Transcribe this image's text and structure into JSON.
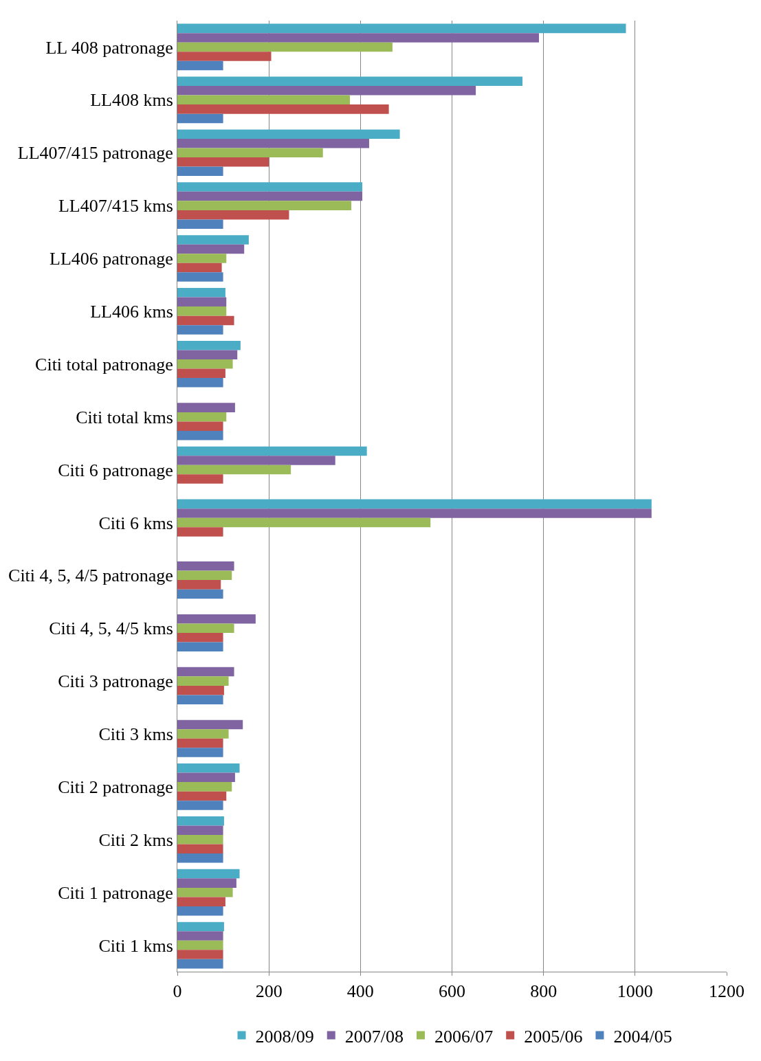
{
  "chart_data": {
    "type": "bar",
    "orientation": "horizontal",
    "categories": [
      "LL 408 patronage",
      "LL408 kms",
      "LL407/415 patronage",
      "LL407/415 kms",
      "LL406 patronage",
      "LL406 kms",
      "Citi total patronage",
      "Citi total kms",
      "Citi 6 patronage",
      "Citi 6 kms",
      "Citi 4, 5, 4/5 patronage",
      "Citi 4, 5, 4/5 kms",
      "Citi 3 patronage",
      "Citi 3 kms",
      "Citi 2 patronage",
      "Citi 2 kms",
      "Citi 1 patronage",
      "Citi 1 kms"
    ],
    "series": [
      {
        "name": "2008/09",
        "color": "#4bacc6",
        "values": [
          980,
          754,
          486,
          404,
          156,
          105,
          138,
          null,
          414,
          1036,
          null,
          null,
          null,
          null,
          136,
          102,
          136,
          102
        ]
      },
      {
        "name": "2007/08",
        "color": "#8064a2",
        "values": [
          790,
          652,
          419,
          404,
          146,
          107,
          131,
          126,
          345,
          1036,
          124,
          171,
          124,
          143,
          126,
          100,
          129,
          100
        ]
      },
      {
        "name": "2006/07",
        "color": "#9bbb59",
        "values": [
          470,
          377,
          318,
          380,
          107,
          107,
          121,
          107,
          248,
          553,
          119,
          124,
          112,
          112,
          119,
          100,
          121,
          100
        ]
      },
      {
        "name": "2005/06",
        "color": "#c0504d",
        "values": [
          205,
          462,
          200,
          244,
          97,
          124,
          105,
          100,
          100,
          100,
          95,
          100,
          102,
          100,
          107,
          100,
          105,
          100
        ]
      },
      {
        "name": "2004/05",
        "color": "#4f81bd",
        "values": [
          100,
          100,
          100,
          100,
          100,
          100,
          100,
          100,
          null,
          null,
          100,
          100,
          100,
          100,
          100,
          100,
          100,
          100
        ]
      }
    ],
    "xlim": [
      0,
      1200
    ],
    "xticks": [
      0,
      200,
      400,
      600,
      800,
      1000,
      1200
    ],
    "grid": "x",
    "legend": "bottom"
  }
}
